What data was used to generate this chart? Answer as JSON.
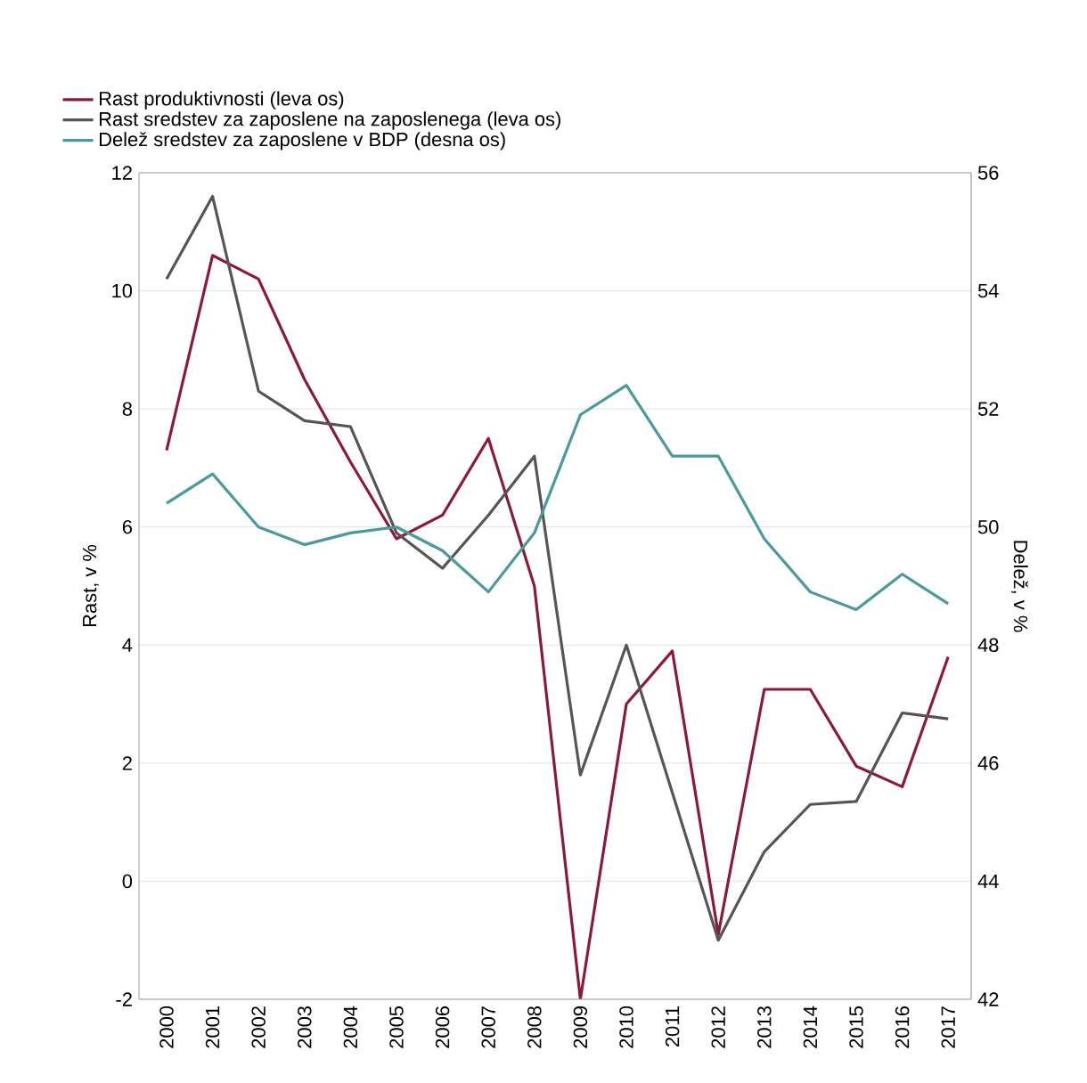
{
  "chart_data": {
    "type": "line",
    "categories": [
      "2000",
      "2001",
      "2002",
      "2003",
      "2004",
      "2005",
      "2006",
      "2007",
      "2008",
      "2009",
      "2010",
      "2011",
      "2012",
      "2013",
      "2014",
      "2015",
      "2016",
      "2017"
    ],
    "series": [
      {
        "name": "Rast produktivnosti (leva os)",
        "color": "#8b1a3a",
        "values": [
          7.3,
          10.6,
          10.2,
          8.5,
          7.1,
          5.8,
          6.2,
          7.5,
          5.0,
          -2.0,
          3.0,
          3.9,
          -0.9,
          3.25,
          3.25,
          1.95,
          1.6,
          3.8
        ]
      },
      {
        "name": "Rast sredstev za zaposlene na zaposlenega (leva os)",
        "color": "#555555",
        "values": [
          10.2,
          11.6,
          8.3,
          7.8,
          7.7,
          5.9,
          5.3,
          6.2,
          7.2,
          1.8,
          4.0,
          1.5,
          -1.0,
          0.5,
          1.3,
          1.35,
          2.85,
          2.75
        ]
      },
      {
        "name": "Delež sredstev za zaposlene v BDP (desna os)",
        "color": "#4a9a9c",
        "axis": "y2",
        "values": [
          50.4,
          50.9,
          50.0,
          49.7,
          49.9,
          50.0,
          49.6,
          48.9,
          49.9,
          51.9,
          52.4,
          51.2,
          51.2,
          49.8,
          48.9,
          48.6,
          49.2,
          48.7
        ]
      }
    ],
    "ylabel": "Rast, v %",
    "y2label": "Delež, v %",
    "ylim": [
      -2,
      12
    ],
    "yticks": [
      -2,
      0,
      2,
      4,
      6,
      8,
      10,
      12
    ],
    "y2lim": [
      42,
      56
    ],
    "y2ticks": [
      42,
      44,
      46,
      48,
      50,
      52,
      54,
      56
    ],
    "grid": "y",
    "legend": "top",
    "marker": "none",
    "line_style": "solid"
  }
}
